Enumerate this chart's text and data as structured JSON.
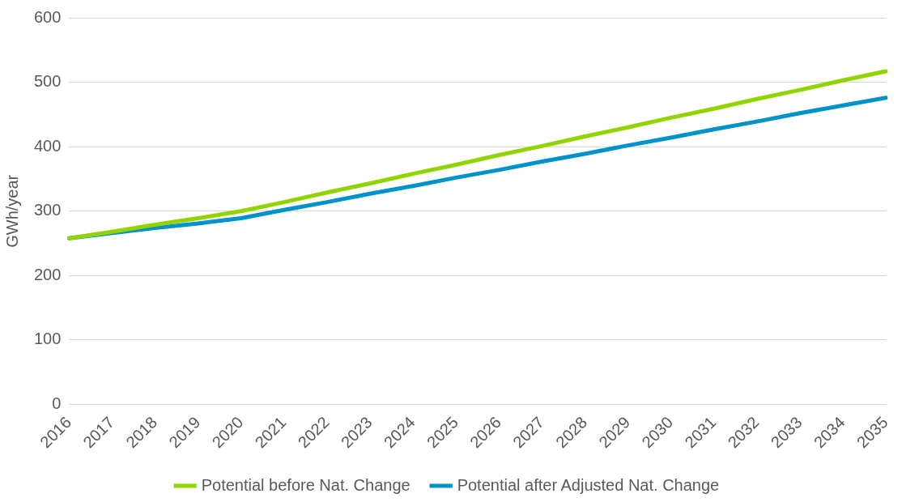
{
  "chart_data": {
    "type": "line",
    "ylabel": "GWh/year",
    "categories": [
      "2016",
      "2017",
      "2018",
      "2019",
      "2020",
      "2021",
      "2022",
      "2023",
      "2024",
      "2025",
      "2026",
      "2027",
      "2028",
      "2029",
      "2030",
      "2031",
      "2032",
      "2033",
      "2034",
      "2035"
    ],
    "series": [
      {
        "name": "Potential before Nat. Change",
        "color": "#92d400",
        "values": [
          258,
          268,
          279,
          289,
          300,
          314,
          329,
          343,
          358,
          372,
          387,
          401,
          416,
          430,
          445,
          459,
          474,
          488,
          503,
          517
        ]
      },
      {
        "name": "Potential after Adjusted Nat. Change",
        "color": "#0093c9",
        "values": [
          258,
          266,
          274,
          281,
          289,
          302,
          314,
          327,
          339,
          352,
          364,
          377,
          389,
          402,
          414,
          427,
          439,
          452,
          464,
          476
        ]
      }
    ],
    "ylim": [
      0,
      600
    ],
    "yticks": [
      0,
      100,
      200,
      300,
      400,
      500,
      600
    ],
    "grid": "y",
    "legend": "bottom",
    "marker": "none",
    "line_style": "solid"
  }
}
